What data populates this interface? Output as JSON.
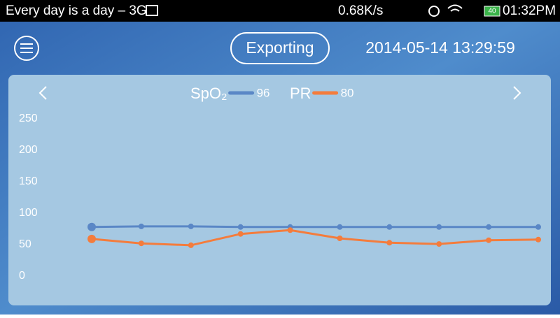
{
  "status_bar": {
    "carrier": "Every day is a day – 3G",
    "speed": "0.68K/s",
    "battery": "40",
    "time": "01:32PM"
  },
  "header": {
    "status": "Exporting",
    "datetime": "2014-05-14 13:29:59"
  },
  "chart_data": {
    "type": "line",
    "series": [
      {
        "name": "SpO₂",
        "current": 96,
        "color": "#5a87c6",
        "values": [
          78,
          79,
          79,
          78,
          78,
          78,
          78,
          78,
          78,
          78
        ]
      },
      {
        "name": "PR",
        "current": 80,
        "color": "#f47c3c",
        "values": [
          59,
          52,
          49,
          67,
          73,
          60,
          53,
          51,
          57,
          58
        ]
      }
    ],
    "ylim": [
      0,
      250
    ],
    "yticks": [
      0,
      50,
      100,
      150,
      200,
      250
    ],
    "grid": false
  }
}
